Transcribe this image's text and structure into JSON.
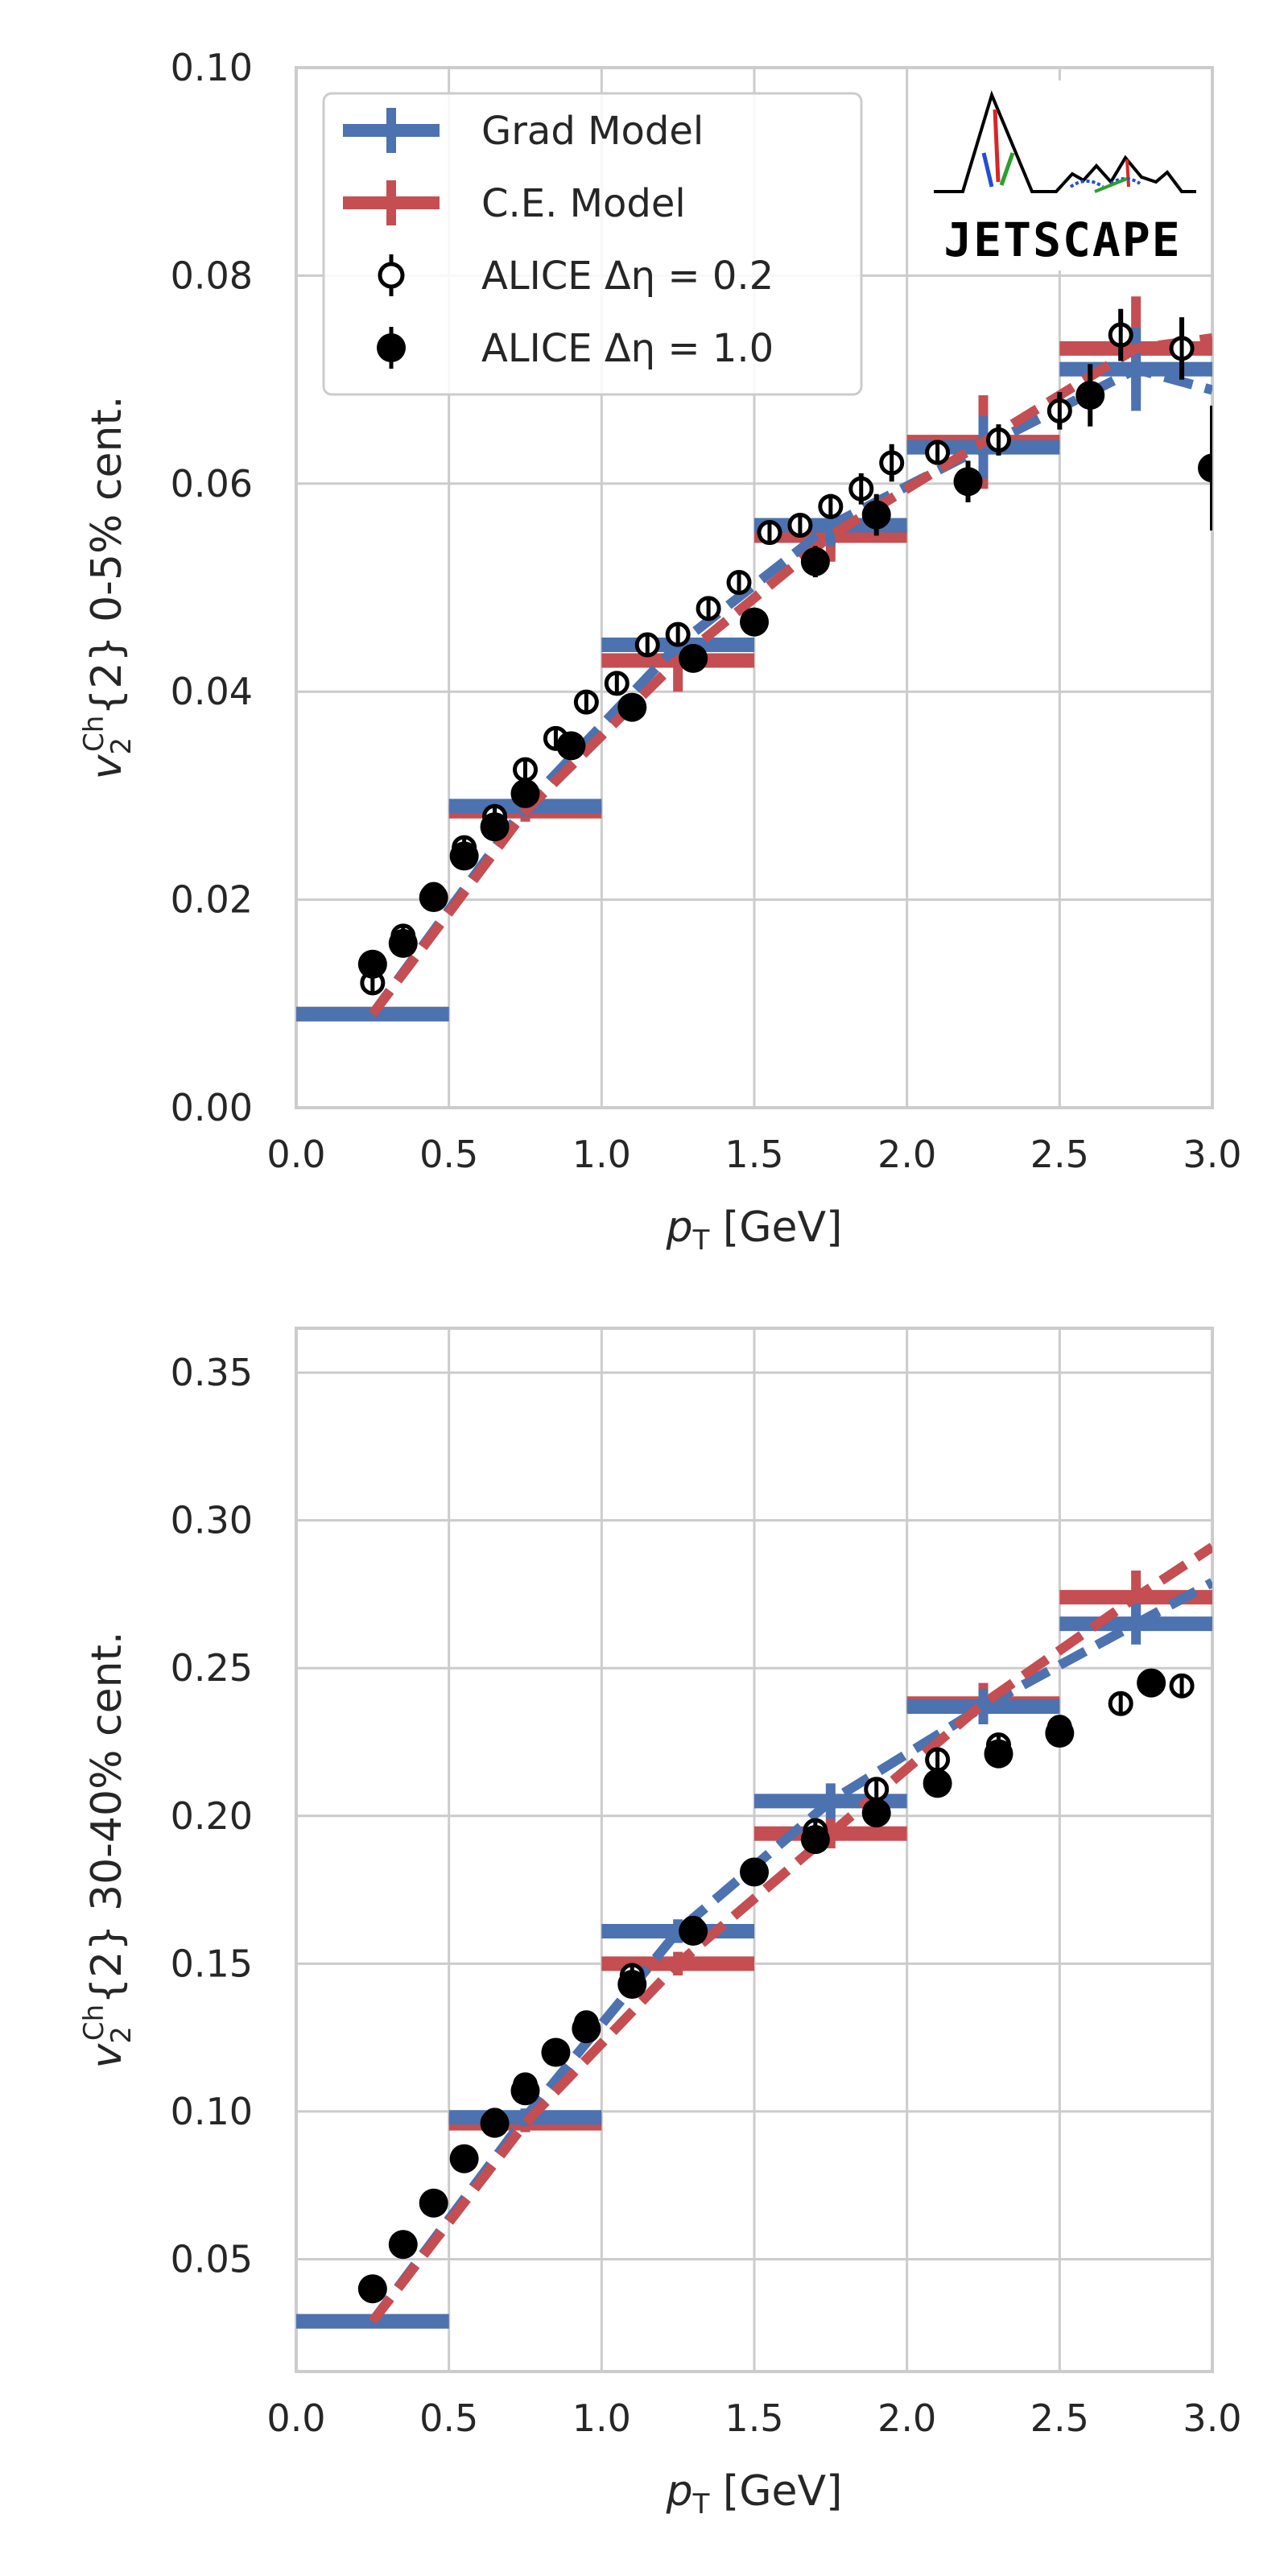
{
  "colors": {
    "grad": "#4c72b0",
    "ce": "#c44e52",
    "data": "#000000",
    "grid": "#cccccc",
    "spine": "#cccccc",
    "text": "#262626"
  },
  "legend": {
    "items": [
      {
        "label": "Grad Model",
        "kind": "grad"
      },
      {
        "label": "C.E. Model",
        "kind": "ce"
      },
      {
        "label": "ALICE Δη = 0.2",
        "kind": "open"
      },
      {
        "label": "ALICE Δη = 1.0",
        "kind": "filled"
      }
    ]
  },
  "logo": {
    "text": "JETSCAPE"
  },
  "chart_data": [
    {
      "type": "scatter",
      "title": "",
      "xlabel": "p_T [GeV]",
      "ylabel": "v_2^Ch{2} 0-5% cent.",
      "xlim": [
        0.0,
        3.0
      ],
      "ylim": [
        0.0,
        0.1
      ],
      "xticks": [
        "0.0",
        "0.5",
        "1.0",
        "1.5",
        "2.0",
        "2.5",
        "3.0"
      ],
      "yticks": [
        "0.00",
        "0.02",
        "0.04",
        "0.06",
        "0.08",
        "0.10"
      ],
      "ytick_values": [
        0.0,
        0.02,
        0.04,
        0.06,
        0.08,
        0.1
      ],
      "grid": true,
      "legend_position": "top-left",
      "series": [
        {
          "name": "Grad Model",
          "bins": [
            {
              "x0": 0.0,
              "x1": 0.5,
              "y": 0.009,
              "err": 0.0005
            },
            {
              "x0": 0.5,
              "x1": 1.0,
              "y": 0.029,
              "err": 0.001
            },
            {
              "x0": 1.0,
              "x1": 1.5,
              "y": 0.0445,
              "err": 0.0015
            },
            {
              "x0": 1.5,
              "x1": 2.0,
              "y": 0.056,
              "err": 0.002
            },
            {
              "x0": 2.0,
              "x1": 2.5,
              "y": 0.0635,
              "err": 0.003
            },
            {
              "x0": 2.5,
              "x1": 3.0,
              "y": 0.071,
              "err": 0.004
            }
          ],
          "curve": {
            "x": [
              0.25,
              0.75,
              1.25,
              1.75,
              2.25,
              2.75,
              3.0
            ],
            "y": [
              0.009,
              0.029,
              0.0445,
              0.056,
              0.0635,
              0.071,
              0.069
            ]
          }
        },
        {
          "name": "C.E. Model",
          "bins": [
            {
              "x0": 0.0,
              "x1": 0.5,
              "y": 0.009,
              "err": 0.0005
            },
            {
              "x0": 0.5,
              "x1": 1.0,
              "y": 0.0285,
              "err": 0.001
            },
            {
              "x0": 1.0,
              "x1": 1.5,
              "y": 0.043,
              "err": 0.003
            },
            {
              "x0": 1.5,
              "x1": 2.0,
              "y": 0.055,
              "err": 0.0025
            },
            {
              "x0": 2.0,
              "x1": 2.5,
              "y": 0.064,
              "err": 0.0045
            },
            {
              "x0": 2.5,
              "x1": 3.0,
              "y": 0.073,
              "err": 0.005
            }
          ],
          "curve": {
            "x": [
              0.25,
              0.75,
              1.25,
              1.75,
              2.25,
              2.75,
              3.0
            ],
            "y": [
              0.009,
              0.0285,
              0.043,
              0.055,
              0.064,
              0.073,
              0.074
            ]
          }
        },
        {
          "name": "ALICE Δη = 0.2",
          "x": [
            0.25,
            0.35,
            0.45,
            0.55,
            0.65,
            0.75,
            0.85,
            0.95,
            1.05,
            1.15,
            1.25,
            1.35,
            1.45,
            1.55,
            1.65,
            1.75,
            1.85,
            1.95,
            2.1,
            2.3,
            2.5,
            2.7,
            2.9
          ],
          "y": [
            0.012,
            0.0165,
            0.0205,
            0.025,
            0.028,
            0.0325,
            0.0355,
            0.039,
            0.0408,
            0.0445,
            0.0455,
            0.048,
            0.0505,
            0.0553,
            0.056,
            0.0578,
            0.0595,
            0.062,
            0.063,
            0.0642,
            0.067,
            0.0743,
            0.073
          ],
          "err": [
            0.001,
            0.0008,
            0.0008,
            0.0008,
            0.0008,
            0.001,
            0.0008,
            0.0008,
            0.001,
            0.001,
            0.001,
            0.001,
            0.001,
            0.001,
            0.001,
            0.0012,
            0.0015,
            0.0018,
            0.0012,
            0.0015,
            0.0018,
            0.0025,
            0.003
          ]
        },
        {
          "name": "ALICE Δη = 1.0",
          "x": [
            0.25,
            0.35,
            0.45,
            0.55,
            0.65,
            0.75,
            0.9,
            1.1,
            1.3,
            1.5,
            1.7,
            1.9,
            2.2,
            2.6,
            3.0
          ],
          "y": [
            0.0138,
            0.0158,
            0.0202,
            0.0242,
            0.027,
            0.0302,
            0.0348,
            0.0385,
            0.0432,
            0.0467,
            0.0525,
            0.057,
            0.0602,
            0.0685,
            0.0615
          ],
          "err": [
            0.001,
            0.0008,
            0.0008,
            0.0008,
            0.001,
            0.001,
            0.001,
            0.001,
            0.001,
            0.001,
            0.0015,
            0.002,
            0.002,
            0.003,
            0.006
          ]
        }
      ]
    },
    {
      "type": "scatter",
      "title": "",
      "xlabel": "p_T [GeV]",
      "ylabel": "v_2^Ch{2} 30-40% cent.",
      "xlim": [
        0.0,
        3.0
      ],
      "ylim": [
        0.012,
        0.365
      ],
      "xticks": [
        "0.0",
        "0.5",
        "1.0",
        "1.5",
        "2.0",
        "2.5",
        "3.0"
      ],
      "yticks": [
        "0.05",
        "0.10",
        "0.15",
        "0.20",
        "0.25",
        "0.30",
        "0.35"
      ],
      "ytick_values": [
        0.05,
        0.1,
        0.15,
        0.2,
        0.25,
        0.3,
        0.35
      ],
      "grid": true,
      "series": [
        {
          "name": "Grad Model",
          "bins": [
            {
              "x0": 0.0,
              "x1": 0.5,
              "y": 0.029,
              "err": 0.002
            },
            {
              "x0": 0.5,
              "x1": 1.0,
              "y": 0.098,
              "err": 0.003
            },
            {
              "x0": 1.0,
              "x1": 1.5,
              "y": 0.161,
              "err": 0.004
            },
            {
              "x0": 1.5,
              "x1": 2.0,
              "y": 0.205,
              "err": 0.006
            },
            {
              "x0": 2.0,
              "x1": 2.5,
              "y": 0.237,
              "err": 0.006
            },
            {
              "x0": 2.5,
              "x1": 3.0,
              "y": 0.265,
              "err": 0.007
            }
          ],
          "curve": {
            "x": [
              0.25,
              0.75,
              1.25,
              1.75,
              2.25,
              2.75,
              3.0
            ],
            "y": [
              0.029,
              0.098,
              0.161,
              0.205,
              0.237,
              0.265,
              0.279
            ]
          }
        },
        {
          "name": "C.E. Model",
          "bins": [
            {
              "x0": 0.0,
              "x1": 0.5,
              "y": 0.029,
              "err": 0.002
            },
            {
              "x0": 0.5,
              "x1": 1.0,
              "y": 0.096,
              "err": 0.003
            },
            {
              "x0": 1.0,
              "x1": 1.5,
              "y": 0.15,
              "err": 0.004
            },
            {
              "x0": 1.5,
              "x1": 2.0,
              "y": 0.194,
              "err": 0.005
            },
            {
              "x0": 2.0,
              "x1": 2.5,
              "y": 0.238,
              "err": 0.007
            },
            {
              "x0": 2.5,
              "x1": 3.0,
              "y": 0.274,
              "err": 0.009
            }
          ],
          "curve": {
            "x": [
              0.25,
              0.75,
              1.25,
              1.75,
              2.25,
              2.75,
              3.0
            ],
            "y": [
              0.029,
              0.096,
              0.15,
              0.194,
              0.238,
              0.274,
              0.291
            ]
          }
        },
        {
          "name": "ALICE Δη = 0.2",
          "x": [
            0.65,
            0.75,
            0.95,
            1.1,
            1.3,
            1.7,
            1.9,
            2.1,
            2.3,
            2.5,
            2.7,
            2.9
          ],
          "y": [
            0.097,
            0.109,
            0.13,
            0.146,
            0.162,
            0.195,
            0.209,
            0.219,
            0.224,
            0.23,
            0.238,
            0.244
          ],
          "err": [
            0.002,
            0.002,
            0.002,
            0.002,
            0.002,
            0.002,
            0.003,
            0.003,
            0.003,
            0.003,
            0.004,
            0.004
          ]
        },
        {
          "name": "ALICE Δη = 1.0",
          "x": [
            0.25,
            0.35,
            0.45,
            0.55,
            0.65,
            0.75,
            0.85,
            0.95,
            1.1,
            1.3,
            1.5,
            1.7,
            1.9,
            2.1,
            2.3,
            2.5,
            2.8
          ],
          "y": [
            0.04,
            0.055,
            0.069,
            0.084,
            0.096,
            0.107,
            0.12,
            0.128,
            0.143,
            0.161,
            0.181,
            0.192,
            0.201,
            0.211,
            0.221,
            0.228,
            0.245
          ],
          "err": [
            0.002,
            0.002,
            0.002,
            0.002,
            0.002,
            0.002,
            0.002,
            0.002,
            0.002,
            0.002,
            0.002,
            0.002,
            0.003,
            0.003,
            0.003,
            0.003,
            0.003
          ]
        }
      ]
    }
  ]
}
